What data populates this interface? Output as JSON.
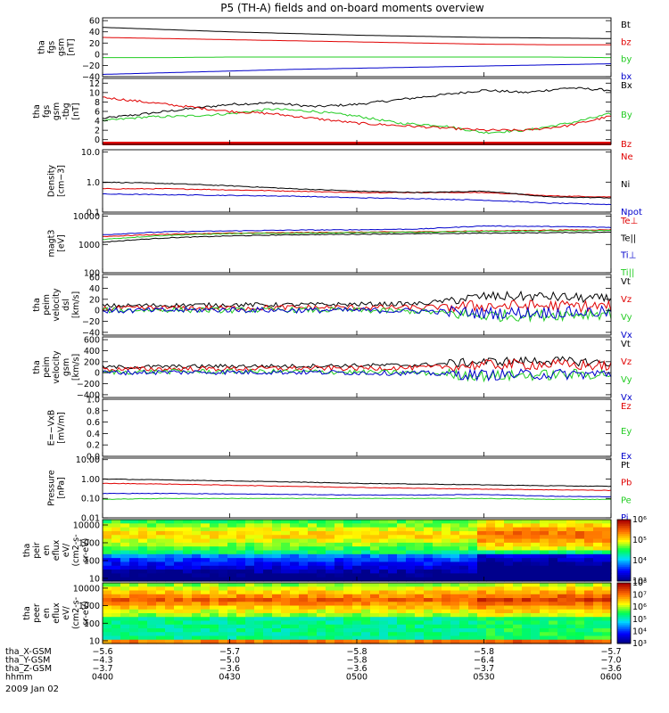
{
  "title": "P5 (TH-A) fields and on-board moments overview",
  "date_label": "2009 Jan 02",
  "colors": {
    "black": "#000000",
    "red": "#e00000",
    "green": "#22cc22",
    "blue": "#0000cc"
  },
  "chart_data": [
    {
      "type": "line",
      "name": "fgs",
      "ylabel": [
        "tha",
        "fgs",
        "gsm",
        "[nT]"
      ],
      "ylim": [
        -40,
        65
      ],
      "ticks": [
        "60",
        "40",
        "20",
        "0",
        "−20",
        "−40"
      ],
      "tick_values": [
        60,
        40,
        20,
        0,
        -20,
        -40
      ],
      "series": [
        {
          "name": "Bt",
          "color": "black",
          "values": [
            48,
            44,
            40,
            37,
            34,
            32,
            30,
            29,
            28
          ]
        },
        {
          "name": "bz",
          "color": "red",
          "values": [
            30,
            28,
            26,
            24,
            22,
            20,
            18,
            17,
            17
          ]
        },
        {
          "name": "by",
          "color": "green",
          "values": [
            -6,
            -6,
            -5,
            -5,
            -5,
            -5,
            -5,
            -5,
            -6
          ]
        },
        {
          "name": "bx",
          "color": "blue",
          "values": [
            -36,
            -33,
            -30,
            -27,
            -25,
            -23,
            -21,
            -19,
            -17
          ]
        }
      ]
    },
    {
      "type": "line",
      "name": "fgs-tbg",
      "ylabel": [
        "tha",
        "fgs",
        "gsm",
        "-tbg",
        "[nT]"
      ],
      "ylim": [
        -1,
        13
      ],
      "ticks": [
        "12",
        "10",
        "8",
        "6",
        "4",
        "2",
        "0"
      ],
      "tick_values": [
        12,
        10,
        8,
        6,
        4,
        2,
        0
      ],
      "series": [
        {
          "name": "Bx",
          "color": "black",
          "values": [
            4.5,
            5.5,
            6.5,
            7.5,
            7.8,
            7.0,
            7.5,
            8.5,
            9.5,
            10.5,
            10.0,
            11.0,
            10.5
          ]
        },
        {
          "name": "By",
          "color": "green",
          "values": [
            4.0,
            4.8,
            5.0,
            5.5,
            6.5,
            6.0,
            5.0,
            3.5,
            3.0,
            1.5,
            2.0,
            3.5,
            5.5
          ]
        },
        {
          "name": "Bz",
          "color": "red",
          "values": [
            9.0,
            8.0,
            7.0,
            6.0,
            5.5,
            4.5,
            3.5,
            3.0,
            2.5,
            2.0,
            2.0,
            3.0,
            5.0
          ]
        }
      ]
    },
    {
      "type": "line",
      "name": "density",
      "log": true,
      "ylabel": [
        "Density",
        "[cm−3]"
      ],
      "ylim": [
        0.1,
        12
      ],
      "ticks": [
        "10.0",
        "1.0",
        "0.1"
      ],
      "tick_values": [
        10,
        1,
        0.1
      ],
      "series": [
        {
          "name": "Ne",
          "color": "red",
          "values": [
            0.6,
            0.6,
            0.55,
            0.5,
            0.45,
            0.45,
            0.45,
            0.35,
            0.32
          ]
        },
        {
          "name": "Ni",
          "color": "black",
          "values": [
            1.0,
            0.9,
            0.75,
            0.6,
            0.5,
            0.45,
            0.5,
            0.32,
            0.3
          ]
        },
        {
          "name": "Npot",
          "color": "blue",
          "values": [
            0.4,
            0.38,
            0.36,
            0.34,
            0.3,
            0.28,
            0.25,
            0.2,
            0.18
          ]
        }
      ]
    },
    {
      "type": "line",
      "name": "temperature",
      "log": true,
      "ylabel": [
        "magt3",
        "[eV]"
      ],
      "ylim": [
        100,
        12000
      ],
      "ticks": [
        "10000",
        "1000",
        "100"
      ],
      "tick_values": [
        10000,
        1000,
        100
      ],
      "series": [
        {
          "name": "Te⊥",
          "color": "red",
          "values": [
            1900,
            2300,
            2500,
            2600,
            2700,
            2800,
            3000,
            3200,
            3300
          ]
        },
        {
          "name": "Te||",
          "color": "black",
          "values": [
            1200,
            1700,
            2000,
            2200,
            2300,
            2400,
            2500,
            2600,
            2700
          ]
        },
        {
          "name": "Ti⊥",
          "color": "blue",
          "values": [
            2200,
            2800,
            3000,
            3200,
            3300,
            3500,
            4500,
            4300,
            4000
          ]
        },
        {
          "name": "Ti||",
          "color": "green",
          "values": [
            1500,
            2100,
            2400,
            2500,
            2600,
            2700,
            2900,
            3000,
            3100
          ]
        }
      ]
    },
    {
      "type": "line",
      "name": "peim-velocity-1",
      "ylabel": [
        "tha",
        "peim",
        "velocity",
        "dsl",
        "[km/s]"
      ],
      "ylim": [
        -45,
        65
      ],
      "ticks": [
        "60",
        "40",
        "20",
        "0",
        "−20",
        "−40"
      ],
      "tick_values": [
        60,
        40,
        20,
        0,
        -20,
        -40
      ],
      "series": [
        {
          "name": "Vt",
          "color": "black",
          "values": [
            8,
            9,
            10,
            10,
            11,
            12,
            25,
            25,
            20
          ]
        },
        {
          "name": "Vz",
          "color": "red",
          "values": [
            3,
            4,
            4,
            5,
            5,
            5,
            8,
            8,
            7
          ]
        },
        {
          "name": "Vy",
          "color": "green",
          "values": [
            0,
            1,
            0,
            1,
            0,
            -2,
            -10,
            -8,
            -5
          ]
        },
        {
          "name": "Vx",
          "color": "blue",
          "values": [
            -1,
            0,
            1,
            0,
            0,
            -1,
            -5,
            -4,
            -3
          ]
        }
      ]
    },
    {
      "type": "line",
      "name": "peim-velocity-2",
      "ylabel": [
        "tha",
        "peim",
        "velocity",
        "gsm",
        "[km/s]"
      ],
      "ylim": [
        -450,
        650
      ],
      "ticks": [
        "600",
        "400",
        "200",
        "0",
        "−200",
        "−400"
      ],
      "tick_values": [
        600,
        400,
        200,
        0,
        -200,
        -400
      ],
      "series": [
        {
          "name": "Vt",
          "color": "black",
          "values": [
            100,
            110,
            120,
            120,
            130,
            140,
            200,
            220,
            180
          ]
        },
        {
          "name": "Vz",
          "color": "red",
          "values": [
            60,
            70,
            70,
            80,
            80,
            90,
            140,
            150,
            120
          ]
        },
        {
          "name": "Vy",
          "color": "green",
          "values": [
            10,
            20,
            20,
            20,
            10,
            0,
            -60,
            -40,
            -20
          ]
        },
        {
          "name": "Vx",
          "color": "blue",
          "values": [
            0,
            10,
            10,
            10,
            0,
            -10,
            -40,
            -30,
            -20
          ]
        }
      ]
    },
    {
      "type": "line",
      "name": "efield",
      "ylabel": [
        "E=−VxB",
        "[mV/m]"
      ],
      "ylim": [
        0,
        1
      ],
      "ticks": [
        "1.0",
        "0.8",
        "0.6",
        "0.4",
        "0.2",
        "0.0"
      ],
      "tick_values": [
        1,
        0.8,
        0.6,
        0.4,
        0.2,
        0
      ],
      "series": [
        {
          "name": "Ez",
          "color": "red",
          "values": []
        },
        {
          "name": "Ey",
          "color": "green",
          "values": []
        },
        {
          "name": "Ex",
          "color": "blue",
          "values": []
        }
      ]
    },
    {
      "type": "line",
      "name": "pressure",
      "log": true,
      "ylabel": [
        "Pressure",
        "[nPa]"
      ],
      "ylim": [
        0.01,
        12
      ],
      "ticks": [
        "10.00",
        "1.00",
        "0.10",
        "0.01"
      ],
      "tick_values": [
        10,
        1,
        0.1,
        0.01
      ],
      "series": [
        {
          "name": "Pt",
          "color": "black",
          "values": [
            1.0,
            0.9,
            0.8,
            0.7,
            0.6,
            0.55,
            0.5,
            0.45,
            0.42
          ]
        },
        {
          "name": "Pb",
          "color": "red",
          "values": [
            0.6,
            0.55,
            0.48,
            0.42,
            0.37,
            0.33,
            0.3,
            0.28,
            0.26
          ]
        },
        {
          "name": "Pe",
          "color": "green",
          "values": [
            0.09,
            0.1,
            0.1,
            0.1,
            0.1,
            0.1,
            0.1,
            0.09,
            0.09
          ]
        },
        {
          "name": "Pi",
          "color": "blue",
          "values": [
            0.18,
            0.18,
            0.17,
            0.16,
            0.15,
            0.15,
            0.16,
            0.13,
            0.12
          ]
        }
      ]
    },
    {
      "type": "heatmap",
      "name": "peir",
      "ylabel": [
        "tha",
        "peir",
        "en",
        "eflux",
        "eV/",
        "(cm2-s-",
        "sr-eV)"
      ],
      "ticks": [
        "10000",
        "1000",
        "100",
        "10"
      ],
      "colorbar_ticks": [
        "10⁶",
        "10⁵",
        "10⁴",
        "10³"
      ],
      "colorbar_scale": [
        3,
        7
      ]
    },
    {
      "type": "heatmap",
      "name": "peer",
      "ylabel": [
        "tha",
        "peer",
        "en",
        "eflux",
        "eV/",
        "(cm2-s-",
        "sr-eV)"
      ],
      "ticks": [
        "10000",
        "1000",
        "100",
        "10"
      ],
      "colorbar_ticks": [
        "10⁸",
        "10⁷",
        "10⁶",
        "10⁵",
        "10⁴",
        "10³"
      ],
      "colorbar_scale": [
        3,
        8
      ]
    }
  ],
  "x_axis": {
    "rows": [
      {
        "label": "tha_X-GSM",
        "values": [
          "−5.6",
          "−5.7",
          "−5.8",
          "−5.8",
          "−5.7"
        ]
      },
      {
        "label": "tha_Y-GSM",
        "values": [
          "−4.3",
          "−5.0",
          "−5.8",
          "−6.4",
          "−7.0"
        ]
      },
      {
        "label": "tha_Z-GSM",
        "values": [
          "−3.7",
          "−3.6",
          "−3.6",
          "−3.7",
          "−3.6"
        ]
      },
      {
        "label": "hhmm",
        "values": [
          "0400",
          "0430",
          "0500",
          "0530",
          "0600"
        ]
      }
    ]
  }
}
